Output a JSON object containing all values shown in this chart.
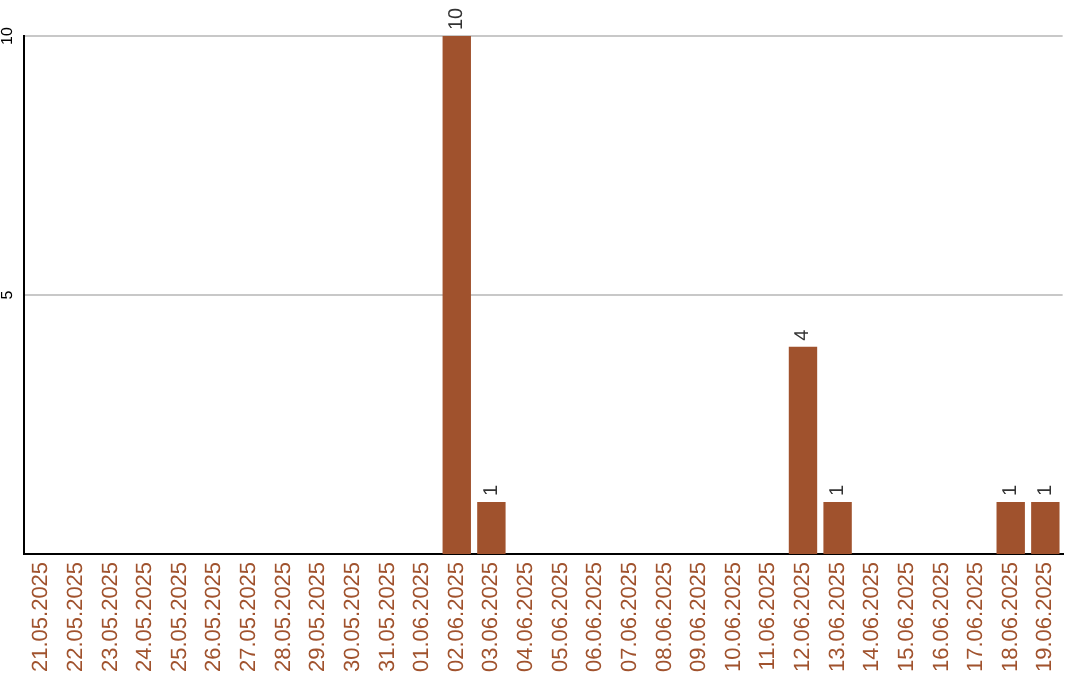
{
  "chart_data": {
    "type": "bar",
    "categories": [
      "21.05.2025",
      "22.05.2025",
      "23.05.2025",
      "24.05.2025",
      "25.05.2025",
      "26.05.2025",
      "27.05.2025",
      "28.05.2025",
      "29.05.2025",
      "30.05.2025",
      "31.05.2025",
      "01.06.2025",
      "02.06.2025",
      "03.06.2025",
      "04.06.2025",
      "05.06.2025",
      "06.06.2025",
      "07.06.2025",
      "08.06.2025",
      "09.06.2025",
      "10.06.2025",
      "11.06.2025",
      "12.06.2025",
      "13.06.2025",
      "14.06.2025",
      "15.06.2025",
      "16.06.2025",
      "17.06.2025",
      "18.06.2025",
      "19.06.2025"
    ],
    "values": [
      0,
      0,
      0,
      0,
      0,
      0,
      0,
      0,
      0,
      0,
      0,
      0,
      10,
      1,
      0,
      0,
      0,
      0,
      0,
      0,
      0,
      0,
      4,
      1,
      0,
      0,
      0,
      0,
      1,
      1
    ],
    "value_labels": [
      null,
      null,
      null,
      null,
      null,
      null,
      null,
      null,
      null,
      null,
      null,
      null,
      "10",
      "1",
      null,
      null,
      null,
      null,
      null,
      null,
      null,
      null,
      "4",
      "1",
      null,
      null,
      null,
      null,
      "1",
      "1"
    ],
    "color": "#a0522d",
    "ylim": [
      0,
      10
    ],
    "yticks": [
      5,
      10
    ],
    "grid": "y",
    "legend": false
  }
}
